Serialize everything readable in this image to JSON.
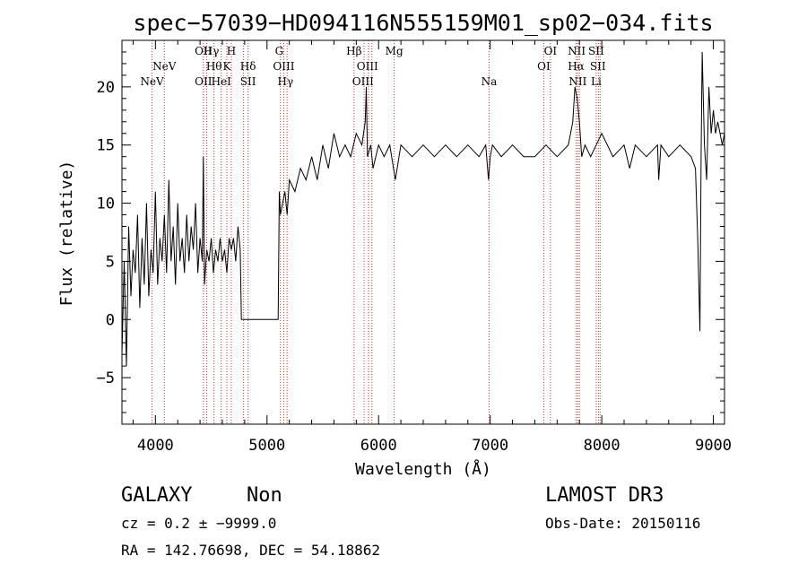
{
  "chart_data": {
    "type": "line",
    "title": "spec−57039−HD094116N555159M01_sp02−034.fits",
    "xlabel": "Wavelength (Å)",
    "ylabel": "Flux (relative)",
    "xlim": [
      3700,
      9100
    ],
    "ylim": [
      -9,
      24
    ],
    "xticks": [
      4000,
      5000,
      6000,
      7000,
      8000,
      9000
    ],
    "yticks": [
      -5,
      0,
      5,
      10,
      15,
      20
    ],
    "grid": false,
    "spectrum": {
      "name": "flux",
      "x": [
        3700,
        3720,
        3740,
        3760,
        3780,
        3800,
        3820,
        3840,
        3860,
        3880,
        3900,
        3920,
        3940,
        3960,
        3980,
        4000,
        4020,
        4040,
        4060,
        4080,
        4100,
        4120,
        4140,
        4160,
        4180,
        4200,
        4220,
        4240,
        4260,
        4280,
        4300,
        4320,
        4340,
        4360,
        4380,
        4400,
        4420,
        4430,
        4440,
        4460,
        4480,
        4500,
        4520,
        4540,
        4560,
        4580,
        4600,
        4620,
        4640,
        4660,
        4680,
        4700,
        4720,
        4740,
        4760,
        4770,
        4780,
        5000,
        5100,
        5110,
        5120,
        5140,
        5160,
        5180,
        5200,
        5250,
        5300,
        5350,
        5400,
        5450,
        5500,
        5550,
        5600,
        5650,
        5700,
        5750,
        5800,
        5850,
        5880,
        5890,
        5900,
        5930,
        5950,
        6000,
        6050,
        6100,
        6150,
        6200,
        6300,
        6400,
        6500,
        6600,
        6700,
        6800,
        6900,
        6960,
        6985,
        7000,
        7020,
        7100,
        7200,
        7300,
        7400,
        7500,
        7600,
        7700,
        7740,
        7760,
        7780,
        7800,
        7820,
        7850,
        7900,
        7950,
        8000,
        8100,
        8200,
        8250,
        8300,
        8400,
        8500,
        8510,
        8530,
        8600,
        8700,
        8800,
        8840,
        8860,
        8880,
        8890,
        8900,
        8920,
        8940,
        8960,
        8980,
        9000,
        9020,
        9040,
        9060,
        9080,
        9100
      ],
      "y": [
        -3,
        5,
        -4,
        8,
        2,
        6,
        4,
        9,
        1,
        7,
        3,
        10,
        2,
        6,
        4,
        11,
        3,
        7,
        5,
        9,
        4,
        12,
        5,
        8,
        3,
        10,
        5,
        7,
        4,
        9,
        5,
        8,
        6,
        10,
        4,
        7,
        5,
        14,
        3,
        6,
        5,
        7,
        4,
        6,
        5,
        7,
        5,
        6,
        4,
        7,
        6,
        7,
        5,
        8,
        6,
        0,
        0,
        0,
        0,
        11,
        9,
        10,
        11,
        9,
        12,
        11,
        13,
        12,
        14,
        12,
        15,
        13,
        16,
        14,
        15,
        14,
        16,
        15,
        17,
        20,
        14,
        15,
        13,
        15,
        14,
        15,
        12,
        15,
        14,
        15,
        14,
        15,
        14,
        15,
        14,
        15,
        12,
        14,
        15,
        14,
        15,
        14,
        14,
        15,
        14,
        15,
        17,
        20,
        19,
        17,
        14,
        15,
        14,
        15,
        16,
        14,
        15,
        13,
        15,
        14,
        15,
        12,
        15,
        14,
        15,
        14,
        13,
        7,
        -1,
        14,
        23,
        15,
        12,
        20,
        16,
        18,
        16,
        17,
        16,
        15,
        16
      ]
    },
    "lines": [
      {
        "label": "NeV",
        "x": 3970,
        "row": 3
      },
      {
        "label": "NeV",
        "x": 4080,
        "row": 2
      },
      {
        "label": "OII",
        "x": 4430,
        "row": 1
      },
      {
        "label": "Hγ",
        "x": 4500,
        "row": 1
      },
      {
        "label": "H",
        "x": 4680,
        "row": 1
      },
      {
        "label": "Hθ",
        "x": 4525,
        "row": 2
      },
      {
        "label": "K",
        "x": 4640,
        "row": 2
      },
      {
        "label": "Hδ",
        "x": 4830,
        "row": 2
      },
      {
        "label": "OII",
        "x": 4430,
        "row": 3
      },
      {
        "label": "HeI",
        "x": 4590,
        "row": 3
      },
      {
        "label": "SII",
        "x": 4830,
        "row": 3
      },
      {
        "label": "G",
        "x": 5110,
        "row": 1
      },
      {
        "label": "OIII",
        "x": 5150,
        "row": 2
      },
      {
        "label": "Hγ",
        "x": 5165,
        "row": 3
      },
      {
        "label": "Hβ",
        "x": 5780,
        "row": 1
      },
      {
        "label": "OIII",
        "x": 5900,
        "row": 2
      },
      {
        "label": "OIII",
        "x": 5860,
        "row": 3
      },
      {
        "label": "Mg",
        "x": 6140,
        "row": 1
      },
      {
        "label": "Na",
        "x": 6990,
        "row": 3
      },
      {
        "label": "OI",
        "x": 7540,
        "row": 1
      },
      {
        "label": "OI",
        "x": 7480,
        "row": 2
      },
      {
        "label": "NII",
        "x": 7775,
        "row": 1
      },
      {
        "label": "SII",
        "x": 7950,
        "row": 1
      },
      {
        "label": "Hα",
        "x": 7770,
        "row": 2
      },
      {
        "label": "SII",
        "x": 7965,
        "row": 2
      },
      {
        "label": "NII",
        "x": 7785,
        "row": 3
      },
      {
        "label": "Li",
        "x": 7950,
        "row": 3
      }
    ],
    "line_positions": [
      3970,
      4080,
      4430,
      4460,
      4525,
      4590,
      4640,
      4680,
      4790,
      4830,
      5120,
      5150,
      5180,
      5780,
      5870,
      5910,
      5940,
      6140,
      6990,
      7480,
      7540,
      7770,
      7785,
      7800,
      7950,
      7970,
      7985
    ]
  },
  "footer": {
    "object_class": "GALAXY",
    "subclass": "Non",
    "redshift_line": "cz = 0.2 ± −9999.0",
    "coords_line": "RA = 142.76698, DEC =  54.18862",
    "survey": "LAMOST DR3",
    "obs_date": "Obs-Date: 20150116"
  },
  "colors": {
    "background": "#ffffff",
    "axis": "#000000",
    "spectrum": "#000000",
    "line_marker": "#c0392b"
  }
}
